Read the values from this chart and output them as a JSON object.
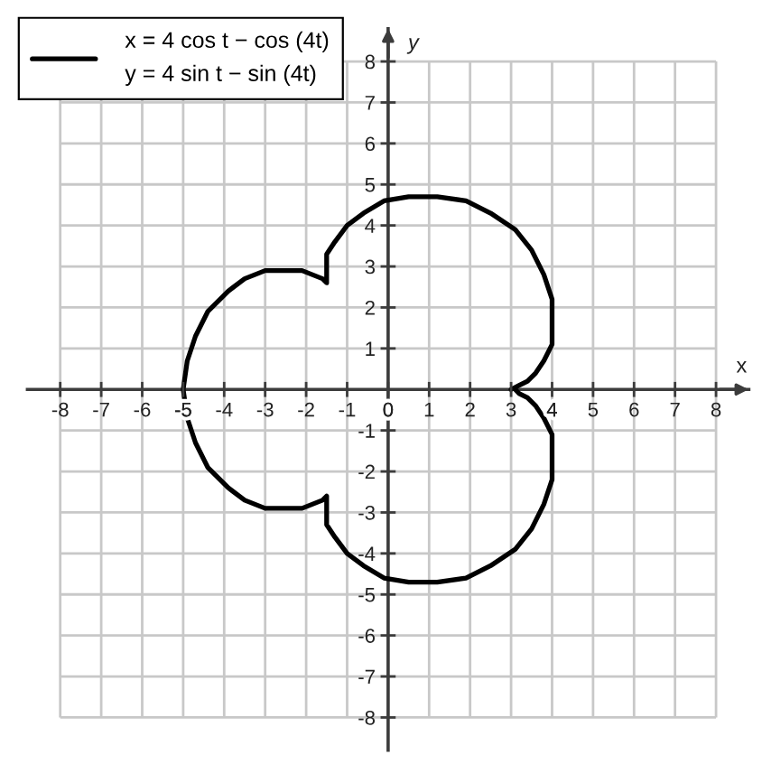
{
  "chart_data": {
    "type": "line",
    "xlabel": "x",
    "ylabel": "y",
    "series": [
      {
        "name": "x = 4 cos t − cos (4t)\ny = 4 sin t − sin (4t)",
        "color": "#000000",
        "x": [
          3,
          3.2,
          3.4,
          3.6,
          3.8,
          4.0,
          4.0,
          4.0,
          3.8,
          3.5,
          3.1,
          2.5,
          1.9,
          1.2,
          0.5,
          -0.1,
          -0.6,
          -1.0,
          -1.3,
          -1.5,
          -1.5,
          -1.5,
          -1.5,
          -1.6,
          -2.1,
          -2.5,
          -3.0,
          -3.5,
          -3.9,
          -4.4,
          -4.7,
          -4.9,
          -5,
          -4.9,
          -4.7,
          -4.4,
          -3.9,
          -3.5,
          -3.0,
          -2.5,
          -2.1,
          -1.6,
          -1.5,
          -1.5,
          -1.5,
          -1.5,
          -1.3,
          -1.0,
          -0.6,
          -0.1,
          0.5,
          1.2,
          1.9,
          2.5,
          3.1,
          3.5,
          3.8,
          4.0,
          4.0,
          4.0,
          3.8,
          3.6,
          3.4,
          3.2,
          3.1
        ],
        "values": [
          0,
          0.1,
          0.2,
          0.4,
          0.7,
          1.1,
          1.7,
          2.2,
          2.8,
          3.4,
          3.9,
          4.3,
          4.6,
          4.7,
          4.7,
          4.6,
          4.3,
          4.0,
          3.6,
          3.3,
          3.0,
          2.8,
          2.6,
          2.7,
          2.9,
          2.9,
          2.9,
          2.7,
          2.4,
          1.9,
          1.3,
          0.7,
          0,
          -0.7,
          -1.3,
          -1.9,
          -2.4,
          -2.7,
          -2.9,
          -2.9,
          -2.9,
          -2.7,
          -2.6,
          -2.8,
          -3.0,
          -3.3,
          -3.6,
          -4.0,
          -4.3,
          -4.6,
          -4.7,
          -4.7,
          -4.6,
          -4.3,
          -3.9,
          -3.4,
          -2.8,
          -2.2,
          -1.7,
          -1.1,
          -0.7,
          -0.4,
          -0.2,
          -0.1,
          0
        ]
      }
    ],
    "xlim": [
      -8.8,
      8.8
    ],
    "ylim": [
      -8.8,
      8.8
    ],
    "xticks": [
      -8,
      -7,
      -6,
      -5,
      -4,
      -3,
      -2,
      -1,
      0,
      1,
      2,
      3,
      4,
      5,
      6,
      7,
      8
    ],
    "yticks": [
      -8,
      -7,
      -6,
      -5,
      -4,
      -3,
      -2,
      -1,
      1,
      2,
      3,
      4,
      5,
      6,
      7,
      8
    ],
    "grid": true,
    "legend": "top left",
    "line_style": "solid"
  }
}
